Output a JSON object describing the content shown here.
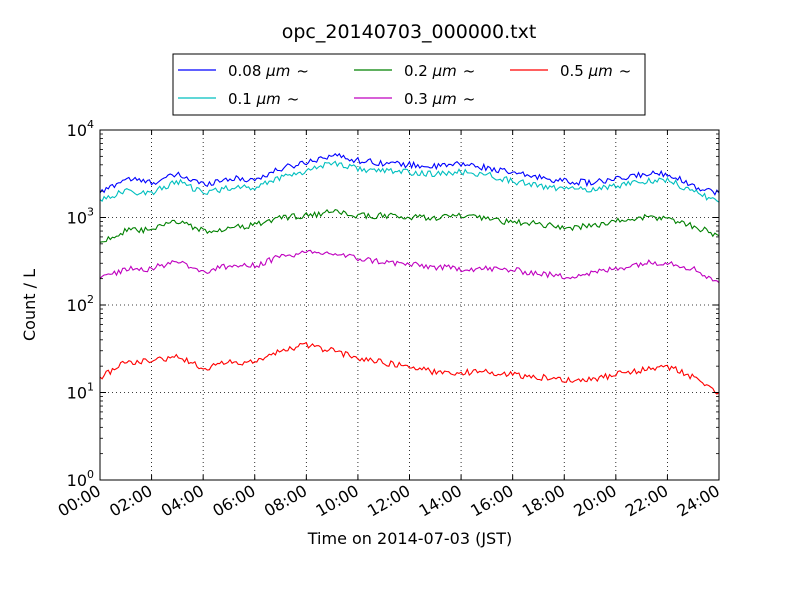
{
  "chart_data": {
    "type": "line",
    "title": "opc_20140703_000000.txt",
    "xlabel": "Time on 2014-07-03 (JST)",
    "ylabel": "Count / L",
    "yscale": "log",
    "ylim": [
      1,
      10000
    ],
    "xlim": [
      "00:00",
      "24:00"
    ],
    "x_tick_labels": [
      "00:00",
      "02:00",
      "04:00",
      "06:00",
      "08:00",
      "10:00",
      "12:00",
      "14:00",
      "16:00",
      "18:00",
      "20:00",
      "22:00",
      "24:00"
    ],
    "y_ticks": [
      {
        "base": "10",
        "exp": "0",
        "value": 1
      },
      {
        "base": "10",
        "exp": "1",
        "value": 10
      },
      {
        "base": "10",
        "exp": "2",
        "value": 100
      },
      {
        "base": "10",
        "exp": "3",
        "value": 1000
      },
      {
        "base": "10",
        "exp": "4",
        "value": 10000
      }
    ],
    "grid": true,
    "legend_position": "top-center",
    "x": [
      "00:00",
      "01:00",
      "02:00",
      "03:00",
      "04:00",
      "05:00",
      "06:00",
      "07:00",
      "08:00",
      "09:00",
      "10:00",
      "11:00",
      "12:00",
      "13:00",
      "14:00",
      "15:00",
      "16:00",
      "17:00",
      "18:00",
      "19:00",
      "20:00",
      "21:00",
      "22:00",
      "23:00",
      "24:00"
    ],
    "series": [
      {
        "name": "0.08 μm ~",
        "name_prefix": "0.08 ",
        "name_unit": "μm",
        "name_suffix": "~",
        "color": "#0000ff",
        "values": [
          1900,
          2800,
          2500,
          3100,
          2400,
          2800,
          2700,
          3600,
          4300,
          5200,
          4500,
          4200,
          4000,
          3800,
          4100,
          3700,
          3200,
          2900,
          2600,
          2500,
          2700,
          3100,
          3200,
          2300,
          1900
        ]
      },
      {
        "name": "0.1 μm ~",
        "name_prefix": "0.1 ",
        "name_unit": "μm",
        "name_suffix": "~",
        "color": "#00bfbf",
        "values": [
          1600,
          2000,
          1900,
          2600,
          1900,
          2200,
          2200,
          2900,
          3400,
          4300,
          3600,
          3400,
          3300,
          3100,
          3300,
          3100,
          2600,
          2300,
          2100,
          2100,
          2300,
          2600,
          2700,
          2000,
          1500
        ]
      },
      {
        "name": "0.2 μm ~",
        "name_prefix": "0.2 ",
        "name_unit": "μm",
        "name_suffix": "~",
        "color": "#008000",
        "values": [
          520,
          700,
          720,
          920,
          700,
          750,
          820,
          1000,
          1050,
          1150,
          1050,
          1050,
          1000,
          1000,
          1050,
          950,
          880,
          850,
          760,
          800,
          900,
          1000,
          980,
          800,
          620
        ]
      },
      {
        "name": "0.3 μm ~",
        "name_prefix": "0.3 ",
        "name_unit": "μm",
        "name_suffix": "~",
        "color": "#bf00bf",
        "values": [
          200,
          260,
          260,
          320,
          240,
          280,
          280,
          360,
          390,
          390,
          340,
          310,
          290,
          270,
          260,
          260,
          250,
          230,
          210,
          230,
          260,
          300,
          310,
          260,
          180
        ]
      },
      {
        "name": "0.5 μm ~",
        "name_prefix": "0.5 ",
        "name_unit": "μm",
        "name_suffix": "~",
        "color": "#ff0000",
        "values": [
          15,
          22,
          23,
          26,
          19,
          22,
          22,
          30,
          35,
          30,
          25,
          22,
          20,
          17,
          17,
          17,
          16,
          15,
          14,
          14,
          16,
          18,
          20,
          15,
          10
        ]
      }
    ]
  }
}
